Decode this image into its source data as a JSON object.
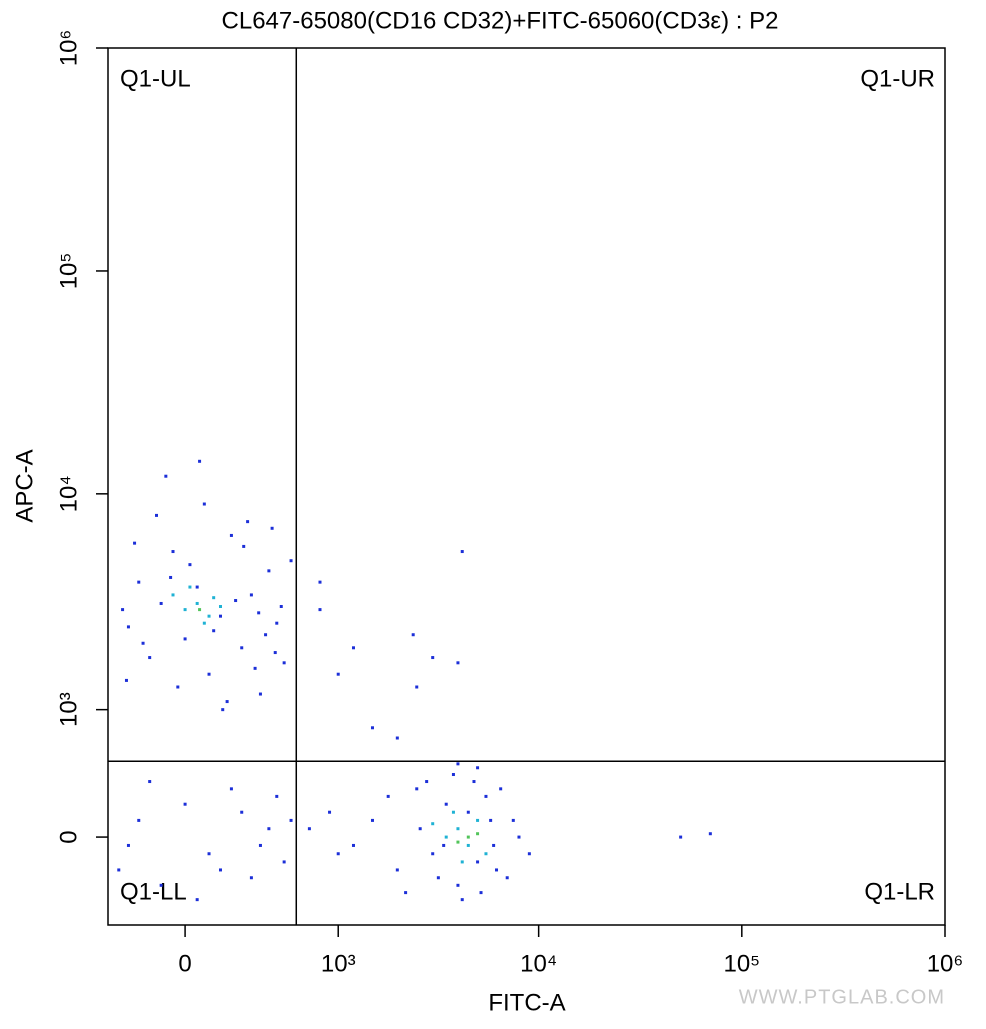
{
  "chart_data": {
    "type": "scatter",
    "title": "CL647-65080(CD16 CD32)+FITC-65060(CD3ε) : P2",
    "x_label": "FITC-A",
    "y_label": "APC-A",
    "watermark": "WWW.PTGLAB.COM",
    "xscale": "biexponential",
    "yscale": "biexponential",
    "xlim": [
      -360,
      1000000
    ],
    "ylim": [
      -600,
      1000000
    ],
    "xticks": [
      0,
      {
        "value": 1000,
        "label": "10³"
      },
      {
        "value": 10000,
        "label": "10⁴"
      },
      {
        "value": 100000,
        "label": "10⁵"
      },
      {
        "value": 1000000,
        "label": "10⁶"
      }
    ],
    "yticks": [
      0,
      {
        "value": 1000,
        "label": "10³"
      },
      {
        "value": 10000,
        "label": "10⁴"
      },
      {
        "value": 100000,
        "label": "10⁵"
      },
      {
        "value": 1000000,
        "label": "10⁶"
      }
    ],
    "gate": {
      "x": 590,
      "y": 500
    },
    "quadrants": [
      "Q1-UL",
      "Q1-UR",
      "Q1-LL",
      "Q1-LR"
    ],
    "series": [
      {
        "color": "#1c2fd8",
        "x": [
          -250,
          -200,
          -150,
          -100,
          -50,
          0,
          50,
          100,
          150,
          200,
          250,
          300,
          350,
          400,
          450,
          500,
          -280,
          -220,
          -120,
          -30,
          80,
          180,
          280,
          380,
          480,
          550,
          -180,
          20,
          120,
          220,
          320,
          420,
          -80,
          60,
          160,
          260,
          -260,
          -60,
          340,
          440,
          1500,
          2000,
          2500,
          3000,
          3500,
          4000,
          4500,
          5000,
          5500,
          6000,
          6500,
          7000,
          7500,
          8000,
          1200,
          1800,
          2200,
          2800,
          3200,
          3800,
          4200,
          4800,
          5200,
          5800,
          6200,
          2600,
          3400,
          900,
          1000,
          700,
          9000,
          5000,
          4000,
          -300,
          -200,
          -100,
          0,
          100,
          200,
          300,
          400,
          500,
          -150,
          50,
          250,
          350,
          450,
          -250,
          150,
          550,
          800,
          1000,
          2500,
          4200,
          2400,
          3000,
          4000,
          1500,
          2000,
          50000,
          70000,
          800,
          1200
        ],
        "y": [
          2500,
          4000,
          1800,
          3200,
          5500,
          2200,
          3800,
          1500,
          2800,
          6500,
          2000,
          3500,
          1200,
          4500,
          2600,
          1700,
          3000,
          6000,
          8000,
          1300,
          9000,
          1100,
          7500,
          2300,
          3100,
          5000,
          2100,
          4800,
          2400,
          3300,
          1600,
          7000,
          12000,
          14000,
          1000,
          5800,
          1400,
          4200,
          2900,
          1900,
          100,
          -200,
          300,
          -100,
          200,
          -300,
          150,
          -150,
          250,
          -50,
          300,
          -250,
          100,
          0,
          -50,
          250,
          -350,
          350,
          -250,
          400,
          -400,
          350,
          -350,
          100,
          -200,
          50,
          -50,
          150,
          -100,
          50,
          -100,
          450,
          480,
          -200,
          100,
          -300,
          200,
          -100,
          300,
          -250,
          50,
          -150,
          350,
          -400,
          150,
          -50,
          250,
          -50,
          -200,
          100,
          3000,
          1500,
          1300,
          5500,
          2300,
          1800,
          1700,
          800,
          700,
          0,
          20,
          4000,
          2000
        ]
      },
      {
        "color": "#1fb2d4",
        "x": [
          0,
          50,
          100,
          -50,
          150,
          80,
          20,
          120,
          3500,
          4000,
          4500,
          5000,
          3000,
          5500,
          4200,
          3800
        ],
        "y": [
          3000,
          3200,
          2800,
          3500,
          3100,
          2600,
          3800,
          3400,
          0,
          50,
          -50,
          100,
          80,
          -100,
          -150,
          150
        ]
      },
      {
        "color": "#52c45a",
        "x": [
          60,
          4500,
          5000,
          4000
        ],
        "y": [
          3000,
          0,
          20,
          -30
        ]
      }
    ]
  }
}
